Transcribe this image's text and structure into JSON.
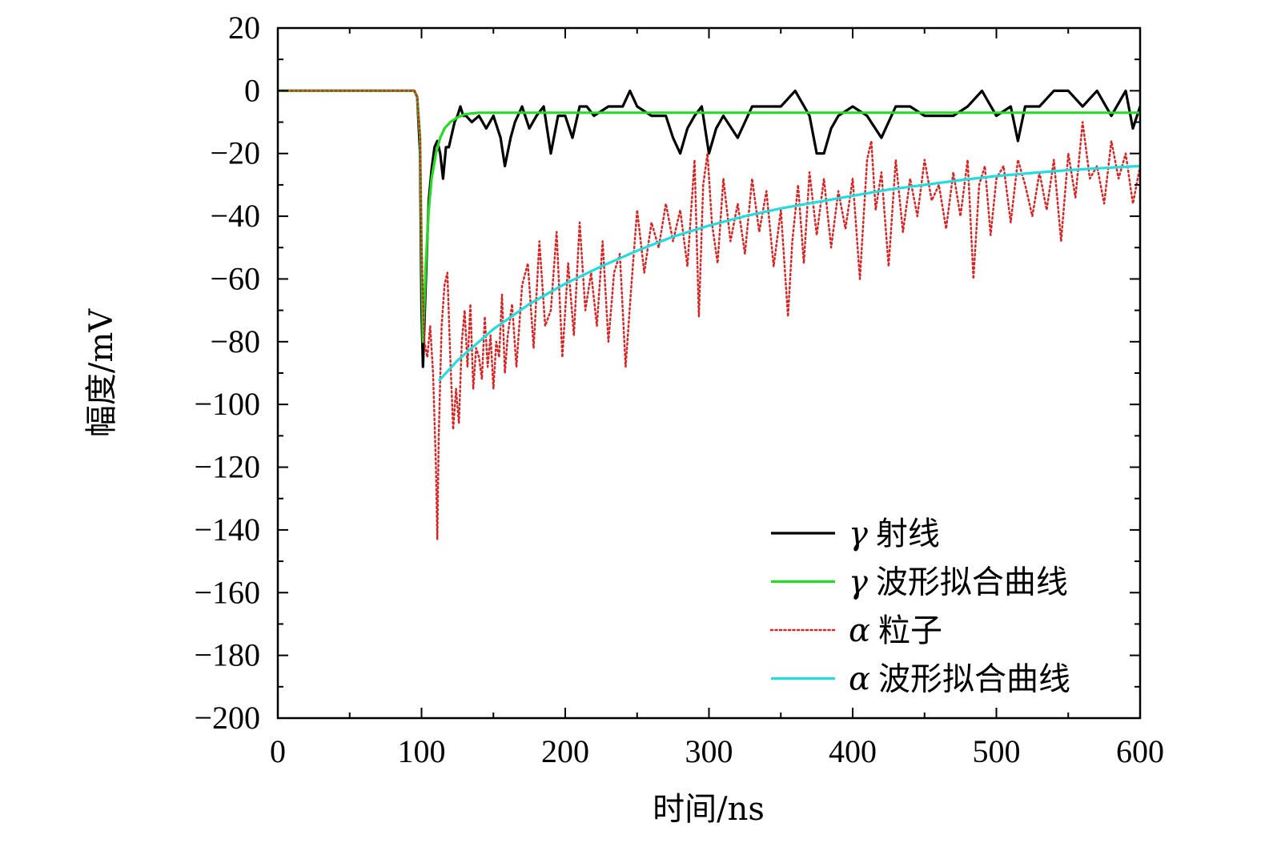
{
  "chart_data": {
    "type": "line",
    "title": "",
    "xlabel": "时间/ns",
    "ylabel": "幅度/mV",
    "xlim": [
      0,
      600
    ],
    "ylim": [
      -200,
      20
    ],
    "x_ticks": [
      0,
      100,
      200,
      300,
      400,
      500,
      600
    ],
    "x_tick_labels": [
      "0",
      "100",
      "200",
      "300",
      "400",
      "500",
      "600"
    ],
    "y_ticks": [
      20,
      0,
      -20,
      -40,
      -60,
      -80,
      -100,
      -120,
      -140,
      -160,
      -180,
      -200
    ],
    "y_tick_labels": [
      "20",
      "0",
      "−20",
      "−40",
      "−60",
      "−80",
      "−100",
      "−120",
      "−140",
      "−160",
      "−180",
      "−200"
    ],
    "legend_position": "bottom-right",
    "series": [
      {
        "name": "γ 射线",
        "greek": "γ",
        "label_text": "射线",
        "color": "#000000",
        "style": "solid",
        "x": [
          0,
          95,
          97,
          99,
          100,
          101,
          103,
          105,
          107,
          109,
          111,
          113,
          115,
          117,
          119,
          121,
          123,
          125,
          127,
          129,
          131,
          135,
          140,
          145,
          150,
          155,
          158,
          162,
          165,
          170,
          175,
          180,
          185,
          190,
          195,
          200,
          205,
          210,
          215,
          220,
          230,
          240,
          245,
          250,
          260,
          270,
          275,
          280,
          285,
          290,
          295,
          300,
          305,
          310,
          320,
          330,
          340,
          350,
          360,
          370,
          375,
          380,
          385,
          390,
          400,
          410,
          420,
          430,
          440,
          450,
          460,
          470,
          480,
          490,
          500,
          510,
          515,
          520,
          530,
          540,
          550,
          560,
          570,
          580,
          590,
          595,
          600
        ],
        "values": [
          0,
          0,
          -2,
          -20,
          -70,
          -88,
          -60,
          -35,
          -25,
          -18,
          -16,
          -20,
          -28,
          -18,
          -18,
          -14,
          -10,
          -8,
          -5,
          -8,
          -8,
          -10,
          -8,
          -12,
          -8,
          -15,
          -24,
          -15,
          -10,
          -5,
          -12,
          -8,
          -5,
          -20,
          -8,
          -8,
          -15,
          -5,
          -5,
          -8,
          -5,
          -5,
          0,
          -5,
          -8,
          -8,
          -15,
          -20,
          -12,
          -8,
          -5,
          -20,
          -12,
          -8,
          -15,
          -5,
          -5,
          -5,
          0,
          -8,
          -20,
          -20,
          -12,
          -8,
          -5,
          -8,
          -15,
          -5,
          -5,
          -8,
          -8,
          -8,
          -5,
          0,
          -8,
          -5,
          -16,
          -5,
          -5,
          0,
          0,
          -5,
          0,
          -8,
          0,
          -12,
          -5
        ]
      },
      {
        "name": "γ 波形拟合曲线",
        "greek": "γ",
        "label_text": "波形拟合曲线",
        "color": "#22dd22",
        "style": "solid",
        "x": [
          0,
          95,
          97,
          99,
          100,
          101,
          103,
          105,
          107,
          110,
          113,
          116,
          120,
          125,
          130,
          135,
          140,
          150,
          200,
          300,
          400,
          500,
          600
        ],
        "values": [
          0,
          0,
          -2,
          -15,
          -50,
          -80,
          -55,
          -38,
          -28,
          -20,
          -15,
          -12,
          -10,
          -8.5,
          -7.5,
          -7.2,
          -7,
          -7,
          -7,
          -7,
          -7,
          -7,
          -7
        ]
      },
      {
        "name": "α 粒子",
        "greek": "α",
        "label_text": "粒子",
        "color": "#dd2222",
        "style": "dotted",
        "x": [
          0,
          95,
          97,
          99,
          100,
          102,
          104,
          106,
          108,
          110,
          111,
          112,
          114,
          116,
          118,
          120,
          122,
          124,
          126,
          128,
          130,
          132,
          134,
          136,
          138,
          140,
          142,
          144,
          146,
          148,
          150,
          152,
          154,
          156,
          158,
          160,
          163,
          166,
          170,
          174,
          178,
          182,
          186,
          190,
          194,
          198,
          202,
          206,
          210,
          214,
          218,
          222,
          226,
          230,
          234,
          238,
          242,
          246,
          250,
          255,
          260,
          265,
          270,
          275,
          280,
          285,
          290,
          293,
          296,
          299,
          302,
          306,
          310,
          315,
          320,
          325,
          330,
          335,
          340,
          345,
          350,
          355,
          358,
          362,
          366,
          370,
          375,
          380,
          385,
          390,
          395,
          400,
          405,
          410,
          413,
          416,
          420,
          425,
          430,
          435,
          440,
          445,
          450,
          455,
          460,
          465,
          470,
          475,
          480,
          484,
          488,
          492,
          496,
          500,
          505,
          510,
          515,
          520,
          525,
          530,
          535,
          540,
          545,
          550,
          555,
          560,
          565,
          570,
          575,
          580,
          585,
          590,
          595,
          600
        ],
        "values": [
          0,
          0,
          -2,
          -15,
          -50,
          -80,
          -85,
          -75,
          -90,
          -120,
          -143,
          -110,
          -75,
          -62,
          -58,
          -85,
          -108,
          -95,
          -106,
          -80,
          -70,
          -88,
          -68,
          -95,
          -82,
          -85,
          -92,
          -72,
          -88,
          -78,
          -95,
          -80,
          -85,
          -65,
          -90,
          -78,
          -68,
          -88,
          -62,
          -55,
          -82,
          -48,
          -75,
          -70,
          -45,
          -85,
          -55,
          -78,
          -42,
          -70,
          -58,
          -75,
          -48,
          -80,
          -58,
          -52,
          -88,
          -62,
          -38,
          -58,
          -42,
          -50,
          -36,
          -48,
          -38,
          -56,
          -22,
          -72,
          -30,
          -20,
          -42,
          -55,
          -28,
          -48,
          -36,
          -52,
          -28,
          -45,
          -32,
          -56,
          -38,
          -72,
          -48,
          -30,
          -55,
          -26,
          -46,
          -28,
          -50,
          -32,
          -44,
          -28,
          -60,
          -22,
          -16,
          -38,
          -26,
          -56,
          -22,
          -45,
          -28,
          -40,
          -22,
          -35,
          -30,
          -44,
          -26,
          -40,
          -22,
          -60,
          -30,
          -24,
          -46,
          -28,
          -24,
          -42,
          -22,
          -30,
          -40,
          -26,
          -38,
          -22,
          -48,
          -20,
          -34,
          -10,
          -28,
          -24,
          -36,
          -16,
          -28,
          -20,
          -36,
          -24
        ]
      },
      {
        "name": "α 波形拟合曲线",
        "greek": "α",
        "label_text": "波形拟合曲线",
        "color": "#22dddd",
        "style": "solid",
        "x": [
          112,
          125,
          150,
          175,
          200,
          225,
          250,
          275,
          300,
          325,
          350,
          375,
          400,
          425,
          450,
          475,
          500,
          525,
          550,
          575,
          600
        ],
        "values": [
          -92.5,
          -86,
          -76,
          -68,
          -61.5,
          -56,
          -51,
          -46.5,
          -43,
          -40,
          -37.5,
          -35.5,
          -33.5,
          -31.5,
          -30,
          -28.5,
          -27.2,
          -26.2,
          -25.3,
          -24.6,
          -24
        ]
      }
    ]
  }
}
